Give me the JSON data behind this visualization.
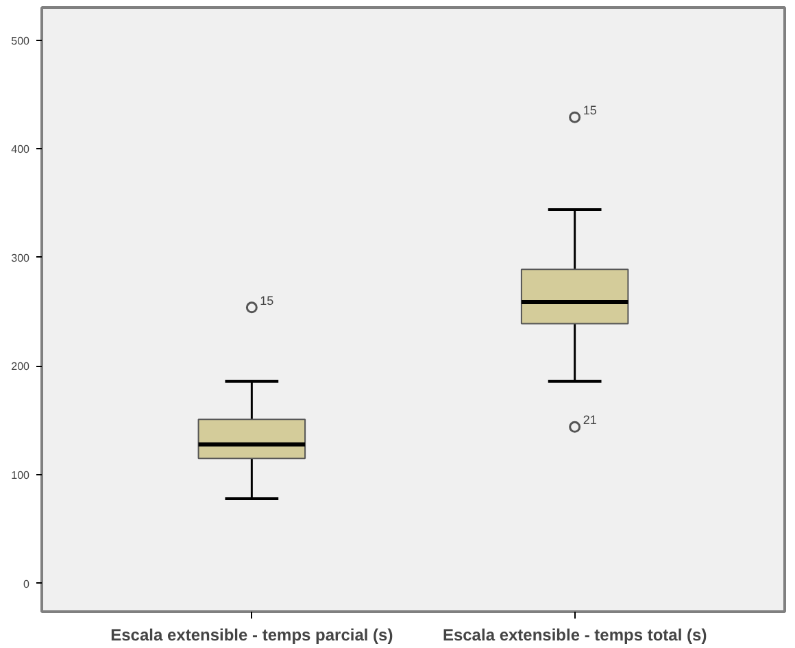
{
  "chart_data": {
    "type": "box",
    "categories": [
      "Escala extensible - temps parcial (s)",
      "Escala extensible - temps total (s)"
    ],
    "color": "#d4cc9a",
    "boxes": [
      {
        "low": 78,
        "q1": 115,
        "median": 128,
        "q3": 151,
        "high": 186,
        "outliers": [
          254
        ]
      },
      {
        "low": 186,
        "q1": 239,
        "median": 259,
        "q3": 289,
        "high": 344,
        "outliers": [
          429,
          144
        ]
      }
    ],
    "annotations": [
      "15",
      "15",
      "21"
    ],
    "ylim": [
      -26,
      530
    ],
    "yticks": [
      0,
      100,
      200,
      300,
      400,
      500
    ],
    "grid": false
  }
}
